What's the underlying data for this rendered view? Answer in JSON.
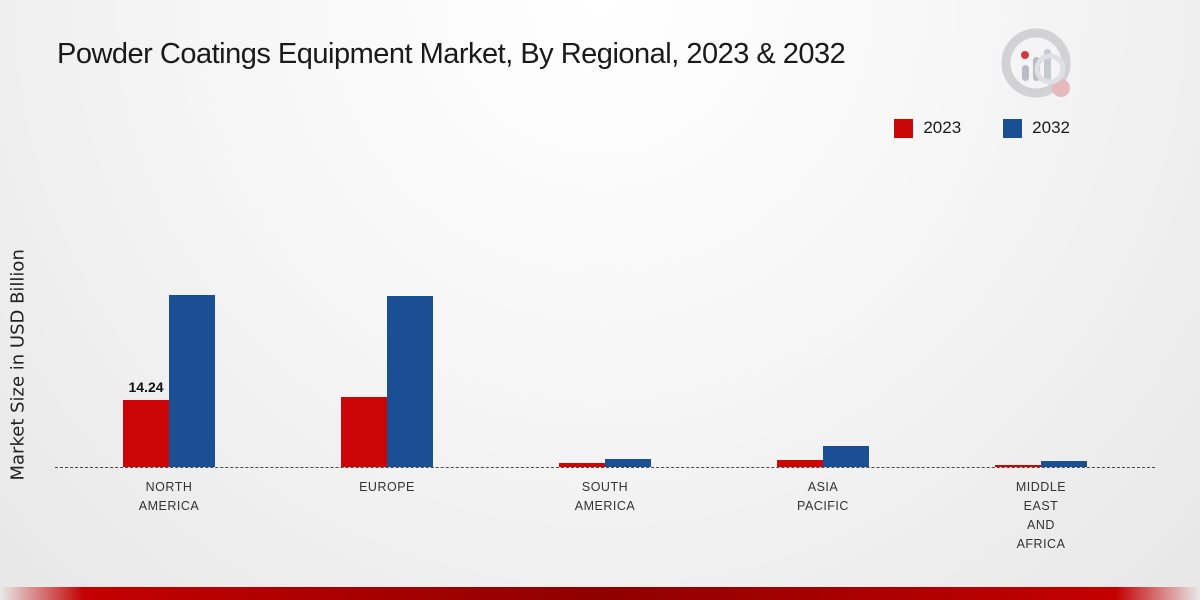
{
  "title": "Powder Coatings Equipment Market, By Regional, 2023 & 2032",
  "ylabel": "Market Size in USD Billion",
  "legend": [
    {
      "label": "2023",
      "color": "#cc0606"
    },
    {
      "label": "2032",
      "color": "#1b4f93"
    }
  ],
  "chart_data": {
    "type": "bar",
    "title": "Powder Coatings Equipment Market, By Regional, 2023 & 2032",
    "xlabel": "",
    "ylabel": "Market Size in USD Billion",
    "categories": [
      "NORTH AMERICA",
      "EUROPE",
      "SOUTH AMERICA",
      "ASIA PACIFIC",
      "MIDDLE EAST AND AFRICA"
    ],
    "categories_lines": [
      [
        "NORTH",
        "AMERICA"
      ],
      [
        "EUROPE"
      ],
      [
        "SOUTH",
        "AMERICA"
      ],
      [
        "ASIA",
        "PACIFIC"
      ],
      [
        "MIDDLE",
        "EAST",
        "AND",
        "AFRICA"
      ]
    ],
    "series": [
      {
        "name": "2023",
        "color": "#cc0606",
        "values": [
          14.24,
          14.9,
          0.8,
          1.5,
          0.5
        ]
      },
      {
        "name": "2032",
        "color": "#1b4f93",
        "values": [
          36.5,
          36.4,
          1.7,
          4.5,
          1.2
        ]
      }
    ],
    "annotations": [
      {
        "category": "NORTH AMERICA",
        "series": "2023",
        "text": "14.24"
      }
    ],
    "ylim": [
      0,
      40
    ],
    "grid": false,
    "baseline_style": "dashed",
    "legend_position": "top-right"
  }
}
